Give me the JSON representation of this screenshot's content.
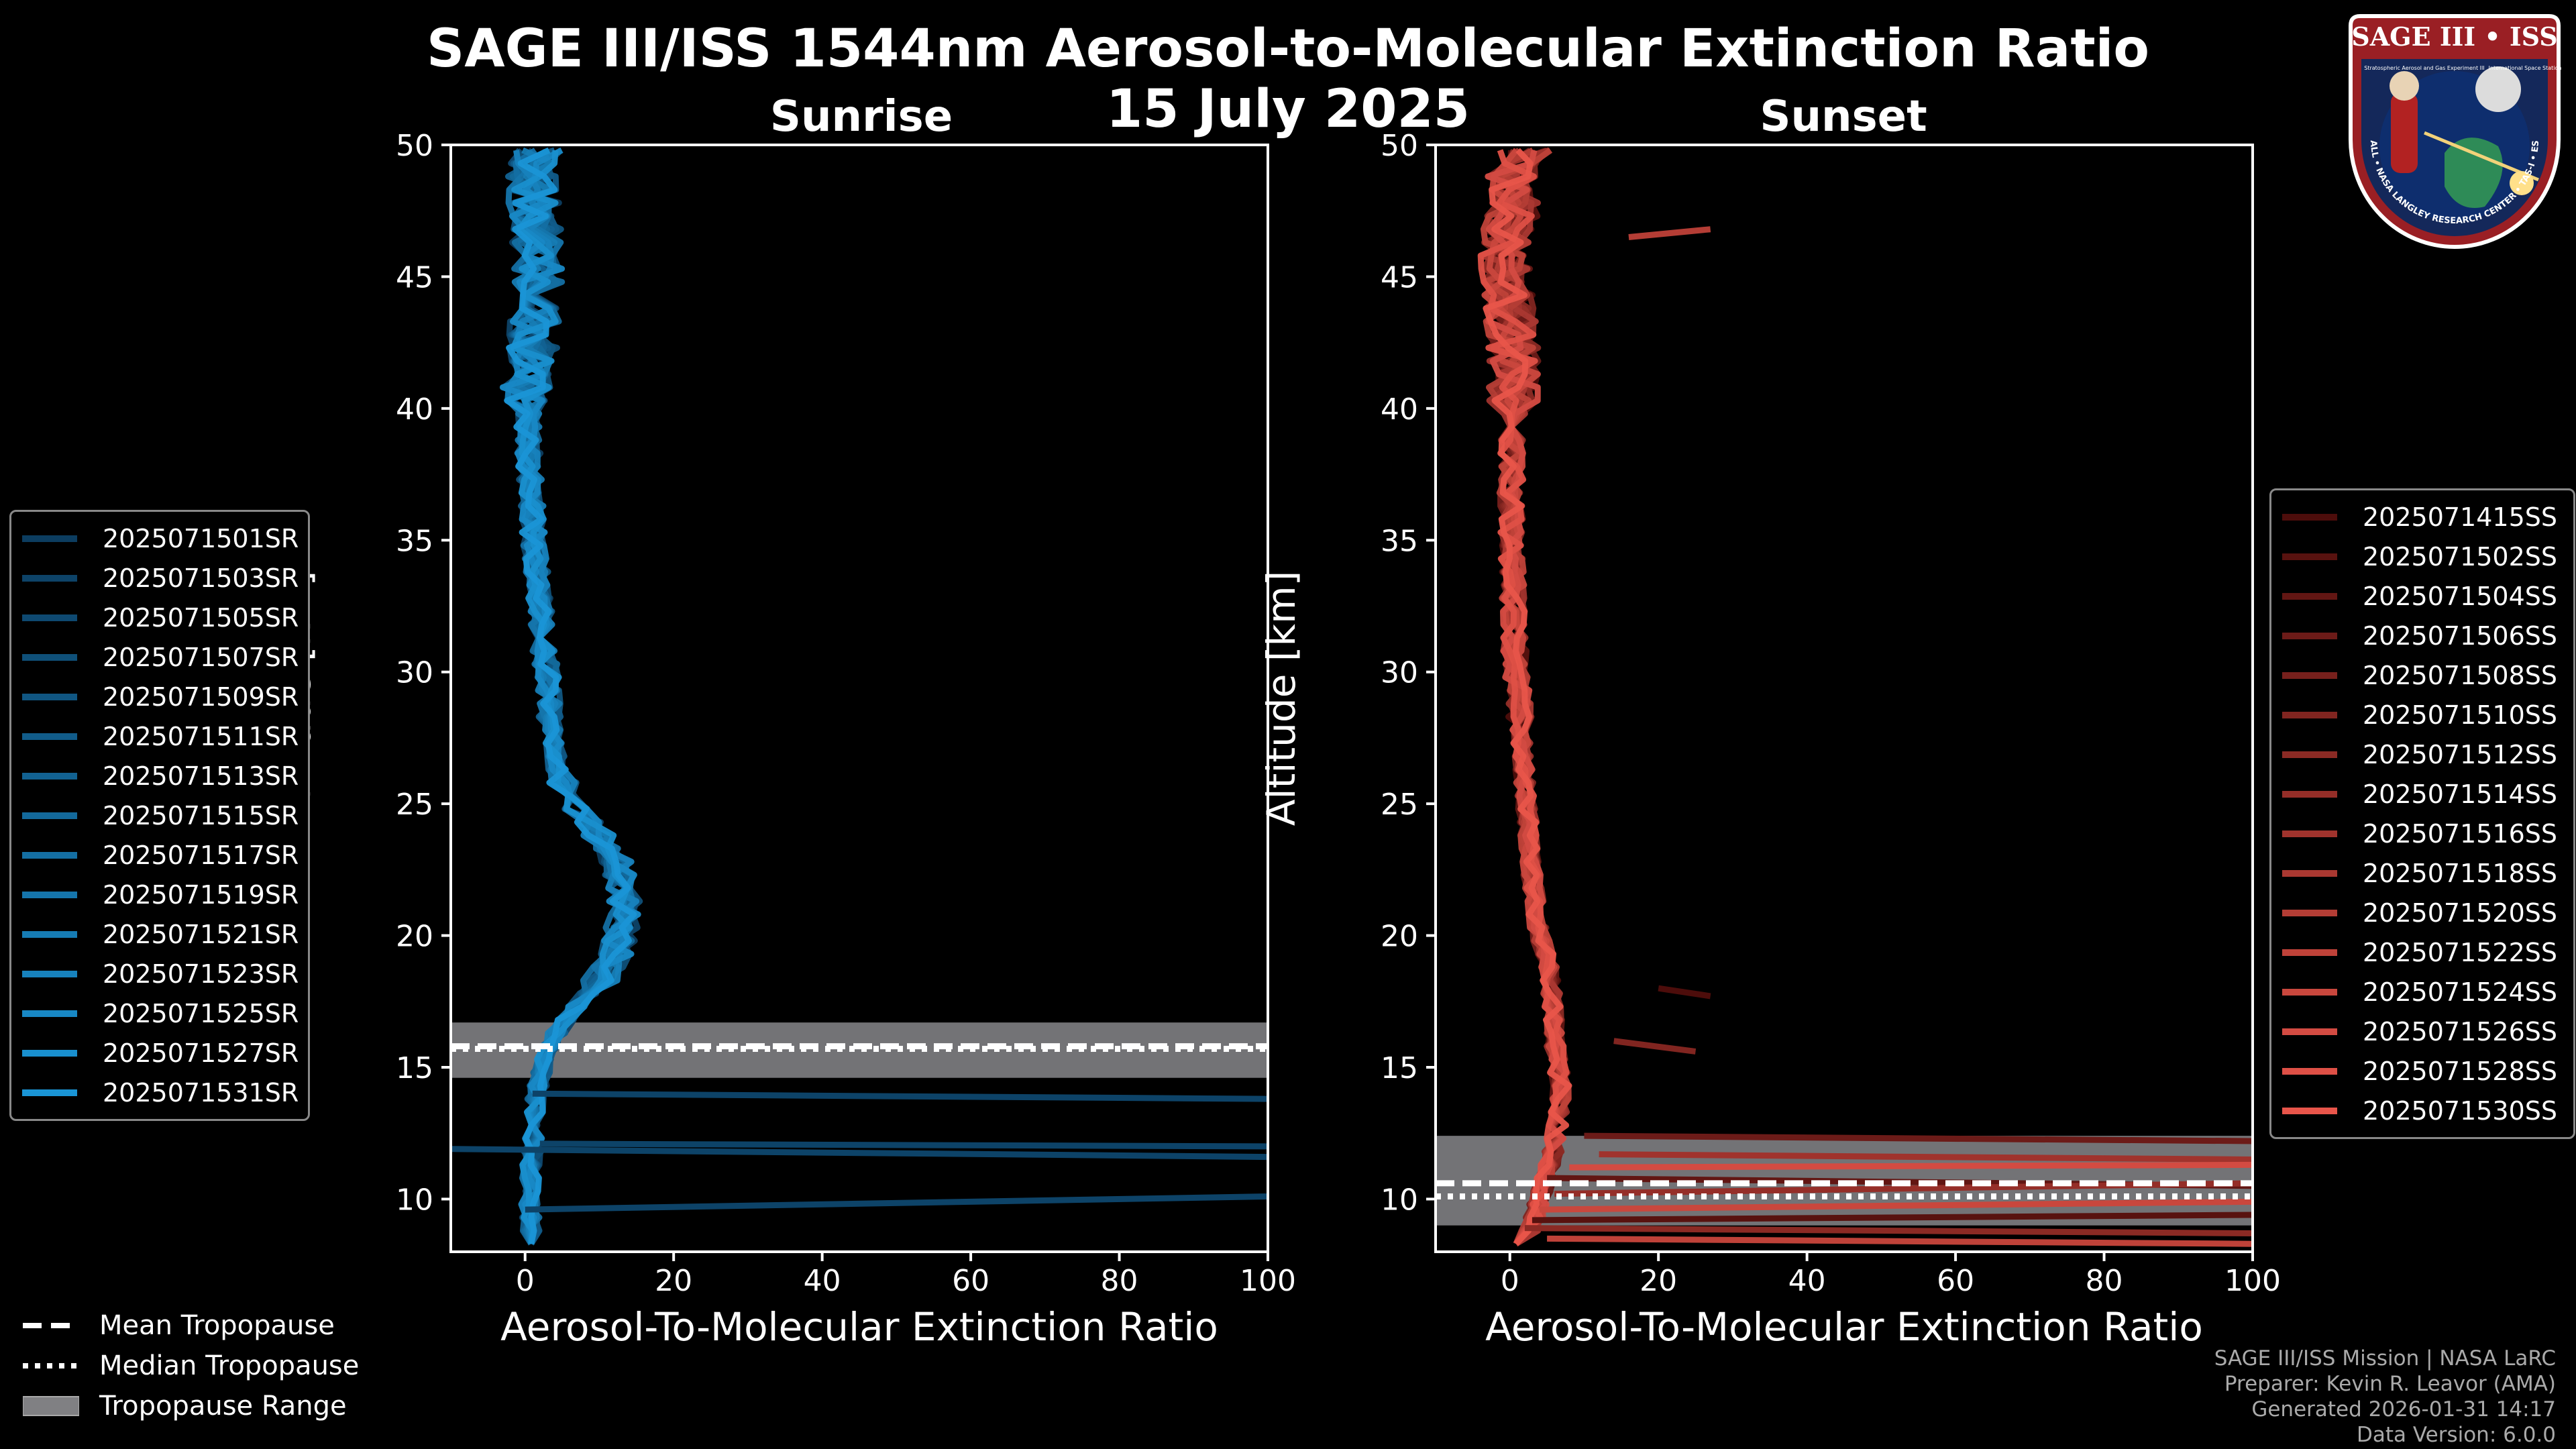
{
  "titles": {
    "main": "SAGE III/ISS 1544nm Aerosol-to-Molecular Extinction Ratio",
    "date": "15 July 2025",
    "left": "Sunrise",
    "right": "Sunset"
  },
  "footer": {
    "line1": "SAGE III/ISS Mission | NASA LaRC",
    "line2": "Preparer: Kevin R. Leavor (AMA)",
    "line3": "Generated 2026-01-31 14:17",
    "line4": "Data Version: 6.0.0"
  },
  "logo": {
    "text": "SAGE III • ISS",
    "ring_text": "BALL • NASA LANGLEY RESEARCH CENTER • TAS-I • ESA",
    "tagline": "Stratospheric Aerosol and Gas Experiment III",
    "tagline2": "International Space Station"
  },
  "legend_trop": {
    "mean": "Mean Tropopause",
    "median": "Median Tropopause",
    "range": "Tropopause Range"
  },
  "colors": {
    "sunrise": "#1a95d6",
    "sunset": "#e8554a",
    "tropo_range": "#808083"
  },
  "chart_data": [
    {
      "type": "line",
      "panel": "Sunrise",
      "title": "Sunrise",
      "xlabel": "Aerosol-To-Molecular Extinction Ratio",
      "ylabel": "Altitude [km]",
      "xlim": [
        -10,
        100
      ],
      "ylim": [
        8,
        50
      ],
      "xticks": [
        0,
        20,
        40,
        60,
        80,
        100
      ],
      "yticks": [
        10,
        15,
        20,
        25,
        30,
        35,
        40,
        45,
        50
      ],
      "tropopause": {
        "mean": 15.8,
        "median": 15.7,
        "range": [
          14.6,
          16.7
        ]
      },
      "series": [
        {
          "name": "2025071501SR"
        },
        {
          "name": "2025071503SR"
        },
        {
          "name": "2025071505SR"
        },
        {
          "name": "2025071507SR"
        },
        {
          "name": "2025071509SR"
        },
        {
          "name": "2025071511SR"
        },
        {
          "name": "2025071513SR"
        },
        {
          "name": "2025071515SR"
        },
        {
          "name": "2025071517SR"
        },
        {
          "name": "2025071519SR"
        },
        {
          "name": "2025071521SR"
        },
        {
          "name": "2025071523SR"
        },
        {
          "name": "2025071525SR"
        },
        {
          "name": "2025071527SR"
        },
        {
          "name": "2025071531SR"
        }
      ],
      "profile_shape": {
        "altitude": [
          8.5,
          10,
          12,
          14,
          15,
          16,
          17,
          18,
          19,
          20,
          21,
          22,
          23,
          24,
          25,
          26,
          27,
          28,
          29,
          30,
          31,
          32,
          33,
          34,
          35,
          36,
          37,
          38,
          39,
          40,
          41,
          42,
          43,
          44,
          45,
          46,
          47,
          48,
          49,
          49.6
        ],
        "ratio": [
          1,
          0.5,
          1,
          1.5,
          2.5,
          3.5,
          6,
          9,
          11,
          12,
          13,
          12.5,
          11,
          8.5,
          6,
          4.5,
          4,
          3.5,
          3.2,
          3,
          2.5,
          2.2,
          1.8,
          1.5,
          1.2,
          1,
          0.8,
          0.6,
          0.4,
          0.4,
          0.5,
          0.8,
          1,
          1.5,
          2,
          1.5,
          2,
          1,
          1,
          2
        ]
      },
      "outliers": [
        {
          "from": [
            0,
            9.6
          ],
          "to": [
            100,
            10.1
          ]
        },
        {
          "from": [
            -10,
            11.9
          ],
          "to": [
            100,
            11.6
          ]
        },
        {
          "from": [
            2,
            12.1
          ],
          "to": [
            100,
            12.0
          ]
        },
        {
          "from": [
            1,
            14.0
          ],
          "to": [
            100,
            13.8
          ]
        }
      ]
    },
    {
      "type": "line",
      "panel": "Sunset",
      "title": "Sunset",
      "xlabel": "Aerosol-To-Molecular Extinction Ratio",
      "ylabel": "Altitude [km]",
      "xlim": [
        -10,
        100
      ],
      "ylim": [
        8,
        50
      ],
      "xticks": [
        0,
        20,
        40,
        60,
        80,
        100
      ],
      "yticks": [
        10,
        15,
        20,
        25,
        30,
        35,
        40,
        45,
        50
      ],
      "tropopause": {
        "mean": 10.6,
        "median": 10.1,
        "range": [
          9.0,
          12.4
        ]
      },
      "series": [
        {
          "name": "2025071415SS"
        },
        {
          "name": "2025071502SS"
        },
        {
          "name": "2025071504SS"
        },
        {
          "name": "2025071506SS"
        },
        {
          "name": "2025071508SS"
        },
        {
          "name": "2025071510SS"
        },
        {
          "name": "2025071512SS"
        },
        {
          "name": "2025071514SS"
        },
        {
          "name": "2025071516SS"
        },
        {
          "name": "2025071518SS"
        },
        {
          "name": "2025071520SS"
        },
        {
          "name": "2025071522SS"
        },
        {
          "name": "2025071524SS"
        },
        {
          "name": "2025071526SS"
        },
        {
          "name": "2025071528SS"
        },
        {
          "name": "2025071530SS"
        }
      ],
      "profile_shape": {
        "altitude": [
          8.5,
          9,
          10,
          11,
          12,
          13,
          14,
          15,
          16,
          17,
          18,
          19,
          20,
          22,
          24,
          26,
          28,
          30,
          32,
          34,
          36,
          38,
          40,
          42,
          44,
          46,
          47,
          48,
          49,
          49.8
        ],
        "ratio": [
          2,
          3,
          4,
          5,
          6,
          6.5,
          7,
          6.5,
          6,
          6,
          5.5,
          5,
          4,
          3,
          2.5,
          2,
          1.5,
          0.8,
          0.5,
          0.3,
          0.2,
          0.2,
          0.5,
          0.5,
          0,
          -1,
          0,
          1,
          0,
          2
        ]
      },
      "outliers": [
        {
          "from": [
            10,
            12.4
          ],
          "to": [
            100,
            12.2
          ]
        },
        {
          "from": [
            12,
            11.7
          ],
          "to": [
            100,
            11.5
          ]
        },
        {
          "from": [
            8,
            11.2
          ],
          "to": [
            100,
            11.3
          ]
        },
        {
          "from": [
            5,
            10.8
          ],
          "to": [
            100,
            10.5
          ]
        },
        {
          "from": [
            6,
            10.2
          ],
          "to": [
            100,
            10.6
          ]
        },
        {
          "from": [
            4,
            9.6
          ],
          "to": [
            100,
            9.9
          ]
        },
        {
          "from": [
            3,
            9.2
          ],
          "to": [
            100,
            9.4
          ]
        },
        {
          "from": [
            2,
            8.9
          ],
          "to": [
            100,
            8.7
          ]
        },
        {
          "from": [
            5,
            8.5
          ],
          "to": [
            100,
            8.3
          ]
        },
        {
          "from": [
            20,
            18.0
          ],
          "to": [
            27,
            17.7
          ]
        },
        {
          "from": [
            14,
            16.0
          ],
          "to": [
            25,
            15.6
          ]
        },
        {
          "from": [
            16,
            46.5
          ],
          "to": [
            27,
            46.8
          ]
        }
      ]
    }
  ]
}
